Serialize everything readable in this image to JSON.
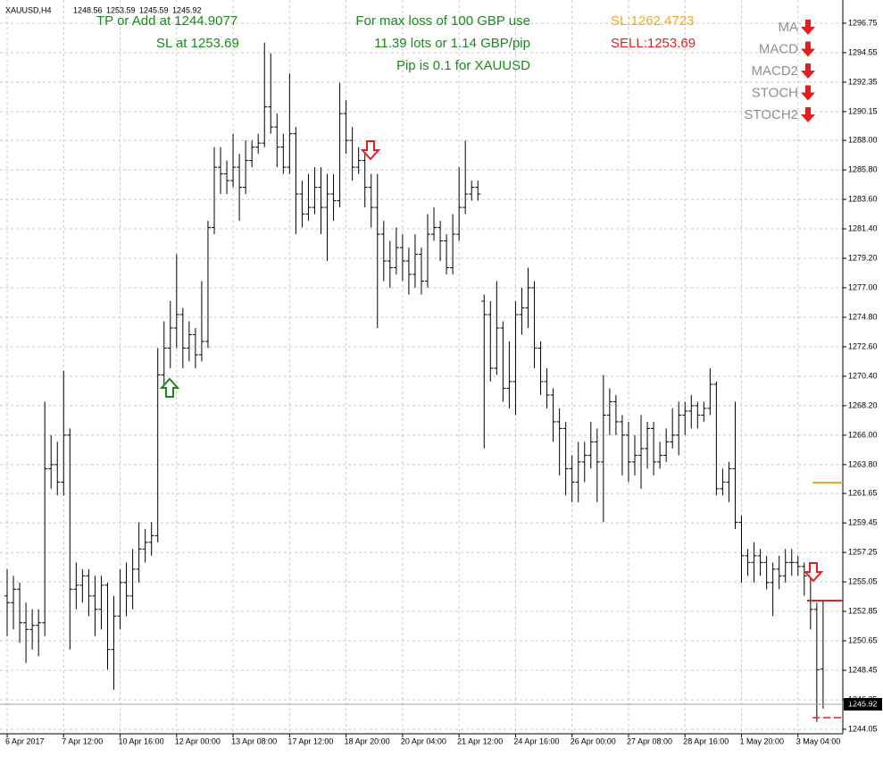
{
  "chart_data": {
    "type": "ohlc",
    "title": "XAUUSD,H4",
    "texts": {
      "tp": "TP or Add at 1244.9077",
      "sl_at": "SL at 1253.69",
      "loss": "For max loss of 100 GBP use",
      "lots": "11.39 lots or 1.14 GBP/pip",
      "pip": "Pip is 0.1 for XAUUSD",
      "sl": "SL:1262.4723",
      "sell": "SELL:1253.69"
    },
    "indicators": [
      "MA",
      "MACD",
      "MACD2",
      "STOCH",
      "STOCH2"
    ],
    "ylim": [
      1243.78,
      1298.08
    ],
    "yticks": [
      {
        "value": 1296.75,
        "label": "1296.75"
      },
      {
        "value": 1294.55,
        "label": "1294.55"
      },
      {
        "value": 1292.35,
        "label": "1292.35"
      },
      {
        "value": 1290.15,
        "label": "1290.15"
      },
      {
        "value": 1288.0,
        "label": "1288.00"
      },
      {
        "value": 1285.8,
        "label": "1285.80"
      },
      {
        "value": 1283.6,
        "label": "1283.60"
      },
      {
        "value": 1281.4,
        "label": "1281.40"
      },
      {
        "value": 1279.2,
        "label": "1279.20"
      },
      {
        "value": 1277.0,
        "label": "1277.00"
      },
      {
        "value": 1274.8,
        "label": "1274.80"
      },
      {
        "value": 1272.6,
        "label": "1272.60"
      },
      {
        "value": 1270.4,
        "label": "1270.40"
      },
      {
        "value": 1268.2,
        "label": "1268.20"
      },
      {
        "value": 1266.0,
        "label": "1266.00"
      },
      {
        "value": 1263.8,
        "label": "1263.80"
      },
      {
        "value": 1261.65,
        "label": "1261.65"
      },
      {
        "value": 1259.45,
        "label": "1259.45"
      },
      {
        "value": 1257.25,
        "label": "1257.25"
      },
      {
        "value": 1255.05,
        "label": "1255.05"
      },
      {
        "value": 1252.85,
        "label": "1252.85"
      },
      {
        "value": 1250.65,
        "label": "1250.65"
      },
      {
        "value": 1248.45,
        "label": "1248.45"
      },
      {
        "value": 1246.25,
        "label": "1246.25"
      },
      {
        "value": 1244.05,
        "label": "1244.05"
      }
    ],
    "grid": true,
    "color": "#000000",
    "categories": [
      "6 Apr 2017",
      null,
      null,
      null,
      null,
      null,
      null,
      null,
      null,
      "7 Apr 12:00",
      null,
      null,
      null,
      null,
      null,
      null,
      null,
      null,
      "10 Apr 16:00",
      null,
      null,
      null,
      null,
      null,
      null,
      null,
      null,
      "12 Apr 00:00",
      null,
      null,
      null,
      null,
      null,
      null,
      null,
      null,
      "13 Apr 08:00",
      null,
      null,
      null,
      null,
      null,
      null,
      null,
      null,
      "17 Apr 12:00",
      null,
      null,
      null,
      null,
      null,
      null,
      null,
      null,
      "18 Apr 20:00",
      null,
      null,
      null,
      null,
      null,
      null,
      null,
      null,
      "20 Apr 04:00",
      null,
      null,
      null,
      null,
      null,
      null,
      null,
      null,
      "21 Apr 12:00",
      null,
      null,
      null,
      null,
      null,
      null,
      null,
      null,
      "24 Apr 16:00",
      null,
      null,
      null,
      null,
      null,
      null,
      null,
      null,
      "26 Apr 00:00",
      null,
      null,
      null,
      null,
      null,
      null,
      null,
      null,
      "27 Apr 08:00",
      null,
      null,
      null,
      null,
      null,
      null,
      null,
      null,
      "28 Apr 16:00",
      null,
      null,
      null,
      null,
      null,
      null,
      null,
      null,
      "1 May 20:00",
      null,
      null,
      null,
      null,
      null,
      null,
      null,
      null,
      "3 May 04:00",
      null,
      null,
      null,
      null
    ],
    "bars": [
      [
        1254,
        1256,
        1251,
        1253.5
      ],
      [
        1253.5,
        1255.5,
        1251.5,
        1254.5
      ],
      [
        1254.5,
        1255,
        1250.5,
        1252
      ],
      [
        1252,
        1253.5,
        1249,
        1251.5
      ],
      [
        1251.5,
        1253,
        1250,
        1251.8
      ],
      [
        1251.8,
        1253,
        1249.5,
        1252
      ],
      [
        1252,
        1268.5,
        1251,
        1263.5
      ],
      [
        1263.5,
        1266,
        1262,
        1263.8
      ],
      [
        1263.8,
        1265.5,
        1261.5,
        1262.5
      ],
      [
        1262.5,
        1270.8,
        1261.5,
        1266
      ],
      [
        1266,
        1266.5,
        1250,
        1254.5
      ],
      [
        1254.5,
        1256.5,
        1253,
        1254.8
      ],
      [
        1254.8,
        1256,
        1253.5,
        1255.5
      ],
      [
        1255.5,
        1256,
        1252.5,
        1254
      ],
      [
        1254,
        1255.5,
        1251,
        1253
      ],
      [
        1253,
        1255.5,
        1251.5,
        1254.8
      ],
      [
        1254.8,
        1255,
        1248.5,
        1250
      ],
      [
        1250,
        1254,
        1247,
        1252.5
      ],
      [
        1252.5,
        1256,
        1251.5,
        1255
      ],
      [
        1255,
        1256.5,
        1252.5,
        1254
      ],
      [
        1254,
        1257.5,
        1253,
        1256
      ],
      [
        1256,
        1259.5,
        1255,
        1257.5
      ],
      [
        1257.5,
        1259,
        1256.5,
        1258
      ],
      [
        1258,
        1259.5,
        1257,
        1258.5
      ],
      [
        1258.5,
        1272.5,
        1258,
        1270.5
      ],
      [
        1270.5,
        1274.5,
        1269.5,
        1272.5
      ],
      [
        1272.5,
        1276,
        1271,
        1274
      ],
      [
        1274,
        1279.5,
        1272.5,
        1275
      ],
      [
        1275,
        1275.5,
        1271,
        1272.5
      ],
      [
        1272.5,
        1274.5,
        1271.5,
        1273.5
      ],
      [
        1273.5,
        1274,
        1271,
        1272
      ],
      [
        1272,
        1277.5,
        1271.5,
        1273
      ],
      [
        1273,
        1282,
        1272.5,
        1281.5
      ],
      [
        1281.5,
        1287.5,
        1281,
        1286
      ],
      [
        1286,
        1287.5,
        1284,
        1285.5
      ],
      [
        1285.5,
        1286.5,
        1284,
        1285
      ],
      [
        1285,
        1288.5,
        1284.5,
        1286
      ],
      [
        1286,
        1287,
        1282,
        1284.5
      ],
      [
        1284.5,
        1288,
        1284,
        1286.5
      ],
      [
        1286.5,
        1288,
        1286,
        1287.5
      ],
      [
        1287.5,
        1288.5,
        1287,
        1287.8
      ],
      [
        1287.8,
        1295.3,
        1287.5,
        1290.5
      ],
      [
        1290.5,
        1294.5,
        1288.5,
        1289
      ],
      [
        1289,
        1290,
        1286,
        1287.5
      ],
      [
        1287.5,
        1288.5,
        1285.5,
        1286
      ],
      [
        1286,
        1293,
        1285.5,
        1288.5
      ],
      [
        1288.5,
        1289,
        1281,
        1284
      ],
      [
        1284,
        1285,
        1281.5,
        1282.5
      ],
      [
        1282.5,
        1285.5,
        1282,
        1283
      ],
      [
        1283,
        1286,
        1282.5,
        1284.5
      ],
      [
        1284.5,
        1286,
        1281,
        1283
      ],
      [
        1283,
        1285.5,
        1279,
        1284
      ],
      [
        1284,
        1285.5,
        1282,
        1283.5
      ],
      [
        1283.5,
        1292.3,
        1283,
        1290
      ],
      [
        1290,
        1291,
        1287,
        1288
      ],
      [
        1288,
        1289,
        1285,
        1286
      ],
      [
        1286,
        1287.5,
        1285.5,
        1286.5
      ],
      [
        1286.5,
        1287,
        1283,
        1284.5
      ],
      [
        1284.5,
        1285.5,
        1281.5,
        1283
      ],
      [
        1283,
        1285.5,
        1274,
        1281
      ],
      [
        1281,
        1282,
        1277.5,
        1279
      ],
      [
        1279,
        1280.5,
        1277,
        1278.5
      ],
      [
        1278.5,
        1281.5,
        1278,
        1280
      ],
      [
        1280,
        1281,
        1277.5,
        1279
      ],
      [
        1279,
        1280,
        1276.5,
        1278
      ],
      [
        1278,
        1281,
        1277,
        1279.5
      ],
      [
        1279.5,
        1280,
        1276.5,
        1277.5
      ],
      [
        1277.5,
        1282.5,
        1277,
        1281
      ],
      [
        1281,
        1283,
        1280.5,
        1281.5
      ],
      [
        1281.5,
        1282,
        1279,
        1280.5
      ],
      [
        1280.5,
        1281,
        1278,
        1278.5
      ],
      [
        1278.5,
        1282.5,
        1278,
        1281
      ],
      [
        1281,
        1286,
        1280.5,
        1283
      ],
      [
        1283,
        1288,
        1282.5,
        1284
      ],
      [
        1284,
        1285,
        1283.5,
        1284.5
      ],
      [
        1284.5,
        1285,
        1283.5,
        1284
      ],
      [
        1276,
        1276.5,
        1265,
        1275
      ],
      [
        1275,
        1276,
        1270,
        1271
      ],
      [
        1271,
        1277.5,
        1270.5,
        1274
      ],
      [
        1274,
        1274.5,
        1268.5,
        1269.5
      ],
      [
        1269.5,
        1273,
        1268,
        1270
      ],
      [
        1270,
        1276,
        1267.5,
        1275
      ],
      [
        1275,
        1277,
        1273.5,
        1275.5
      ],
      [
        1275.5,
        1278.5,
        1274,
        1277
      ],
      [
        1277,
        1277.5,
        1271,
        1272.5
      ],
      [
        1272.5,
        1273,
        1269,
        1270
      ],
      [
        1270,
        1271,
        1268,
        1269
      ],
      [
        1269,
        1269.5,
        1265.5,
        1267
      ],
      [
        1267,
        1268,
        1263,
        1266.5
      ],
      [
        1266.5,
        1267,
        1261.5,
        1263.5
      ],
      [
        1263.5,
        1264.5,
        1261,
        1262.5
      ],
      [
        1262.5,
        1265.5,
        1261,
        1264
      ],
      [
        1264,
        1265.5,
        1262.5,
        1264.5
      ],
      [
        1264.5,
        1267,
        1263.5,
        1265.5
      ],
      [
        1265.5,
        1266.5,
        1261,
        1264
      ],
      [
        1264,
        1270.5,
        1259.5,
        1267.5
      ],
      [
        1267.5,
        1269.5,
        1266,
        1268.5
      ],
      [
        1268.5,
        1269,
        1266,
        1267
      ],
      [
        1267,
        1267.5,
        1263,
        1266
      ],
      [
        1266,
        1267,
        1262.5,
        1264
      ],
      [
        1264,
        1266,
        1263,
        1264.5
      ],
      [
        1264.5,
        1267.5,
        1262,
        1265
      ],
      [
        1265,
        1267,
        1263.5,
        1266.5
      ],
      [
        1266.5,
        1267,
        1263,
        1264
      ],
      [
        1264,
        1265.5,
        1263.5,
        1264.5
      ],
      [
        1264.5,
        1266.5,
        1264,
        1265.5
      ],
      [
        1265.5,
        1268,
        1265,
        1266
      ],
      [
        1266,
        1268.5,
        1264.5,
        1267.5
      ],
      [
        1267.5,
        1268.5,
        1266,
        1267.8
      ],
      [
        1267.8,
        1269,
        1266.5,
        1268.2
      ],
      [
        1268.2,
        1268.5,
        1266.5,
        1267.5
      ],
      [
        1267.5,
        1268.5,
        1267,
        1268
      ],
      [
        1268,
        1271,
        1267.5,
        1269.8
      ],
      [
        1269.8,
        1270,
        1261.5,
        1262
      ],
      [
        1262,
        1263.5,
        1261.5,
        1262.5
      ],
      [
        1262.5,
        1264,
        1261,
        1263.5
      ],
      [
        1263.5,
        1268.5,
        1259,
        1259.5
      ],
      [
        1259.5,
        1260,
        1255,
        1257
      ],
      [
        1257,
        1257.5,
        1255.5,
        1256.5
      ],
      [
        1256.5,
        1258,
        1255,
        1257
      ],
      [
        1257,
        1257.5,
        1255.5,
        1256.5
      ],
      [
        1256.5,
        1257,
        1254.5,
        1255
      ],
      [
        1255,
        1256.5,
        1252.5,
        1256
      ],
      [
        1256,
        1257,
        1254.5,
        1255.5
      ],
      [
        1255.5,
        1257.5,
        1255,
        1256.5
      ],
      [
        1256.5,
        1257.5,
        1255.5,
        1256.5
      ],
      [
        1256.5,
        1257,
        1255.5,
        1256.2
      ],
      [
        1256.2,
        1256.5,
        1254,
        1255.5
      ],
      [
        1255.5,
        1256,
        1251.5,
        1253
      ],
      [
        1253,
        1253.5,
        1244.6,
        1248.5
      ],
      [
        1248.56,
        1253.59,
        1245.59,
        1245.92
      ]
    ]
  }
}
